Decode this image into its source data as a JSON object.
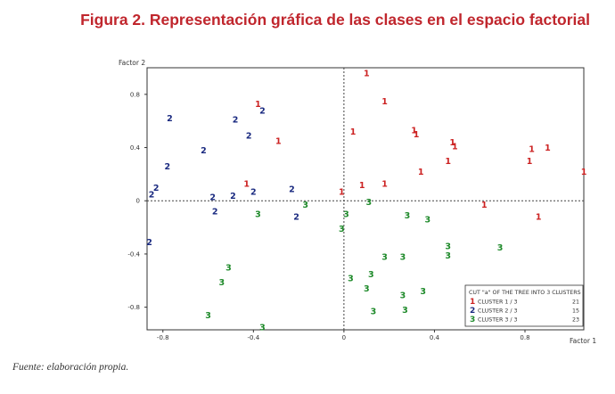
{
  "figure": {
    "title": "Figura 2. Representación gráfica de las clases en el espacio factorial",
    "source": "Fuente: elaboración propia."
  },
  "colors": {
    "title": "#c0262d",
    "cluster1": "#cc2222",
    "cluster2": "#1a2a80",
    "cluster3": "#1e8a2a",
    "axis": "#333333"
  },
  "chart_data": {
    "type": "scatter",
    "xlabel": "Factor 1",
    "ylabel": "Factor 2",
    "xlim": [
      -0.87,
      1.06
    ],
    "ylim": [
      -0.97,
      1.0
    ],
    "xticks": [
      {
        "v": -0.8,
        "label": "-0.8"
      },
      {
        "v": -0.4,
        "label": "-0.4"
      },
      {
        "v": 0,
        "label": "0"
      },
      {
        "v": 0.4,
        "label": "0.4"
      },
      {
        "v": 0.8,
        "label": "0.8"
      }
    ],
    "yticks": [
      {
        "v": 0.8,
        "label": "0.8"
      },
      {
        "v": 0.4,
        "label": "0.4"
      },
      {
        "v": 0,
        "label": "0"
      },
      {
        "v": -0.4,
        "label": "-0.4"
      },
      {
        "v": -0.8,
        "label": "-0.8"
      }
    ],
    "legend": {
      "position": "bottom-right",
      "title": "CUT \"a\" OF THE TREE INTO   3 CLUSTERS",
      "entries": [
        {
          "marker": "1",
          "label": "CLUSTER  1 / 3",
          "count": "21"
        },
        {
          "marker": "2",
          "label": "CLUSTER  2 / 3",
          "count": "15"
        },
        {
          "marker": "3",
          "label": "CLUSTER  3 / 3",
          "count": "23"
        }
      ]
    },
    "series": [
      {
        "marker": "1",
        "points": [
          [
            0.1,
            0.96
          ],
          [
            0.18,
            0.75
          ],
          [
            -0.38,
            0.73
          ],
          [
            0.04,
            0.52
          ],
          [
            0.31,
            0.53
          ],
          [
            0.32,
            0.5
          ],
          [
            -0.29,
            0.45
          ],
          [
            0.48,
            0.44
          ],
          [
            0.49,
            0.41
          ],
          [
            0.83,
            0.39
          ],
          [
            0.9,
            0.4
          ],
          [
            0.46,
            0.3
          ],
          [
            0.82,
            0.3
          ],
          [
            0.34,
            0.22
          ],
          [
            1.06,
            0.22
          ],
          [
            -0.43,
            0.13
          ],
          [
            0.08,
            0.12
          ],
          [
            0.18,
            0.13
          ],
          [
            -0.01,
            0.07
          ],
          [
            0.62,
            -0.03
          ],
          [
            0.86,
            -0.12
          ]
        ]
      },
      {
        "marker": "2",
        "points": [
          [
            -0.77,
            0.62
          ],
          [
            -0.48,
            0.61
          ],
          [
            -0.36,
            0.68
          ],
          [
            -0.42,
            0.49
          ],
          [
            -0.62,
            0.38
          ],
          [
            -0.78,
            0.26
          ],
          [
            -0.83,
            0.1
          ],
          [
            -0.85,
            0.05
          ],
          [
            -0.58,
            0.03
          ],
          [
            -0.49,
            0.04
          ],
          [
            -0.4,
            0.07
          ],
          [
            -0.23,
            0.09
          ],
          [
            -0.57,
            -0.08
          ],
          [
            -0.21,
            -0.12
          ],
          [
            -0.86,
            -0.31
          ]
        ]
      },
      {
        "marker": "3",
        "points": [
          [
            -0.38,
            -0.1
          ],
          [
            -0.17,
            -0.03
          ],
          [
            0.01,
            -0.1
          ],
          [
            0.11,
            -0.01
          ],
          [
            0.28,
            -0.11
          ],
          [
            0.37,
            -0.14
          ],
          [
            -0.01,
            -0.21
          ],
          [
            0.46,
            -0.34
          ],
          [
            0.46,
            -0.41
          ],
          [
            0.69,
            -0.35
          ],
          [
            0.18,
            -0.42
          ],
          [
            0.26,
            -0.42
          ],
          [
            -0.51,
            -0.5
          ],
          [
            -0.54,
            -0.61
          ],
          [
            0.03,
            -0.58
          ],
          [
            0.12,
            -0.55
          ],
          [
            0.1,
            -0.66
          ],
          [
            0.35,
            -0.68
          ],
          [
            0.26,
            -0.71
          ],
          [
            0.13,
            -0.83
          ],
          [
            0.27,
            -0.82
          ],
          [
            -0.6,
            -0.86
          ],
          [
            -0.36,
            -0.95
          ]
        ]
      }
    ]
  }
}
